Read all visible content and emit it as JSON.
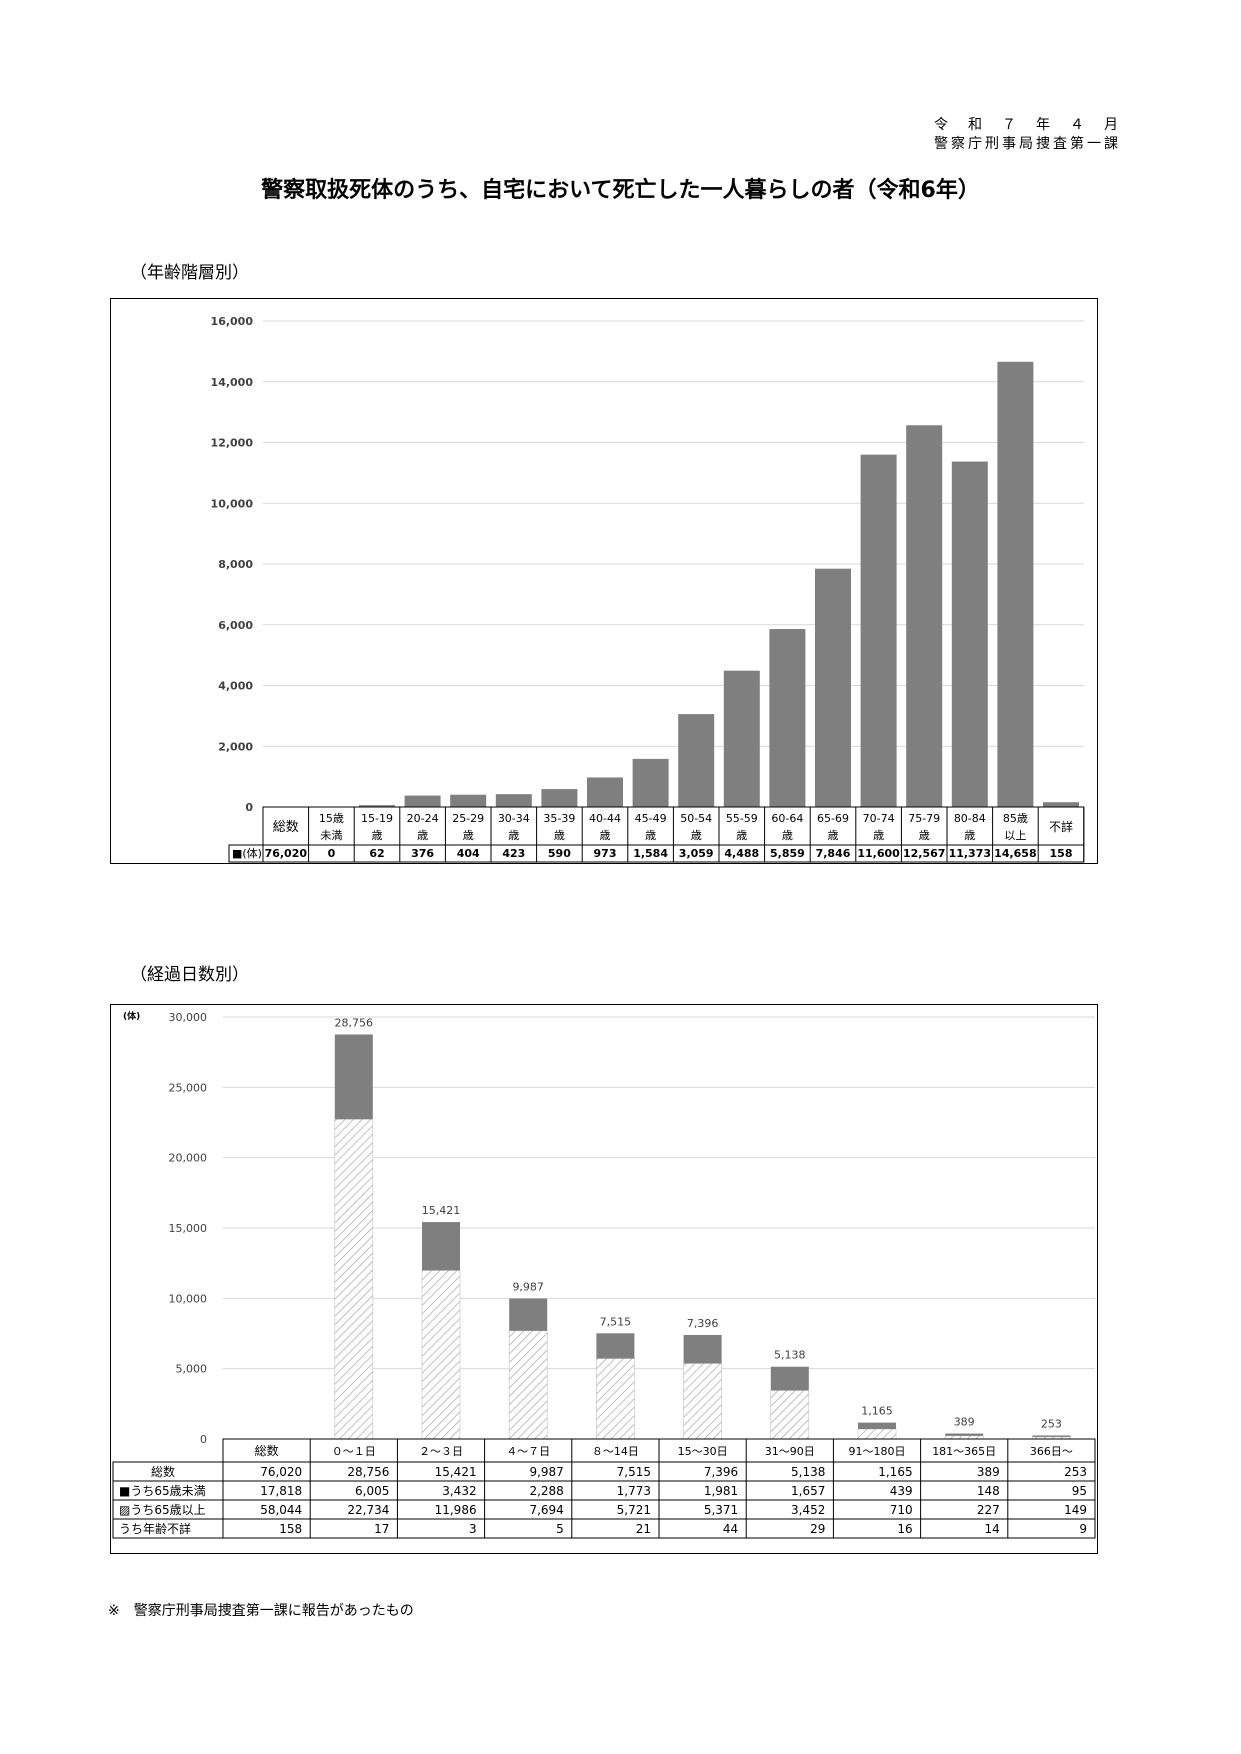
{
  "header": {
    "date": "令　和　７　年　４　月",
    "org": "警察庁刑事局捜査第一課"
  },
  "title": "警察取扱死体のうち、自宅において死亡した一人暮らしの者（令和6年）",
  "chart1": {
    "section_label": "（年齢階層別）",
    "legend_label": "■(体)",
    "total_label": "総数",
    "total_value": "76,020",
    "colors": {
      "bar": "#7f7f7f",
      "grid": "#d9d9d9"
    }
  },
  "chart2": {
    "section_label": "（経過日数別）",
    "unit_label": "(体)",
    "header_total": "総数",
    "row_labels": [
      "総数",
      "■うち65歳未満",
      "▨うち65歳以上",
      "うち年齢不詳"
    ],
    "totals": [
      "76,020",
      "17,818",
      "58,044",
      "158"
    ],
    "colors": {
      "under65": "#7f7f7f",
      "over65_hatch": "#a6a6a6",
      "grid": "#d9d9d9"
    }
  },
  "footnote": "※　警察庁刑事局捜査第一課に報告があったもの",
  "chart_data": [
    {
      "type": "bar",
      "categories": [
        "15歳未満",
        "15-19歳",
        "20-24歳",
        "25-29歳",
        "30-34歳",
        "35-39歳",
        "40-44歳",
        "45-49歳",
        "50-54歳",
        "55-59歳",
        "60-64歳",
        "65-69歳",
        "70-74歳",
        "75-79歳",
        "80-84歳",
        "85歳以上",
        "不詳"
      ],
      "values": [
        0,
        62,
        376,
        404,
        423,
        590,
        973,
        1584,
        3059,
        4488,
        5859,
        7846,
        11600,
        12567,
        11373,
        14658,
        158
      ],
      "ylim": [
        0,
        16000
      ],
      "yticks": [
        0,
        2000,
        4000,
        6000,
        8000,
        10000,
        12000,
        14000,
        16000
      ],
      "ytick_labels": [
        "0",
        "2,000",
        "4,000",
        "6,000",
        "8,000",
        "10,000",
        "12,000",
        "14,000",
        "16,000"
      ],
      "grid": true
    },
    {
      "type": "bar",
      "stacked": true,
      "categories": [
        "０～１日",
        "２～３日",
        "４～７日",
        "８～14日",
        "15～30日",
        "31～90日",
        "91～180日",
        "181～365日",
        "366日～"
      ],
      "totals": [
        28756,
        15421,
        9987,
        7515,
        7396,
        5138,
        1165,
        389,
        253
      ],
      "series": [
        {
          "name": "うち65歳未満",
          "values": [
            6005,
            3432,
            2288,
            1773,
            1981,
            1657,
            439,
            148,
            95
          ]
        },
        {
          "name": "うち65歳以上",
          "values": [
            22734,
            11986,
            7694,
            5721,
            5371,
            3452,
            710,
            227,
            149
          ]
        },
        {
          "name": "うち年齢不詳",
          "values": [
            17,
            3,
            5,
            21,
            44,
            29,
            16,
            14,
            9
          ]
        }
      ],
      "ylim": [
        0,
        30000
      ],
      "yticks": [
        0,
        5000,
        10000,
        15000,
        20000,
        25000,
        30000
      ],
      "ytick_labels": [
        "0",
        "5,000",
        "10,000",
        "15,000",
        "20,000",
        "25,000",
        "30,000"
      ],
      "grid": true
    }
  ]
}
